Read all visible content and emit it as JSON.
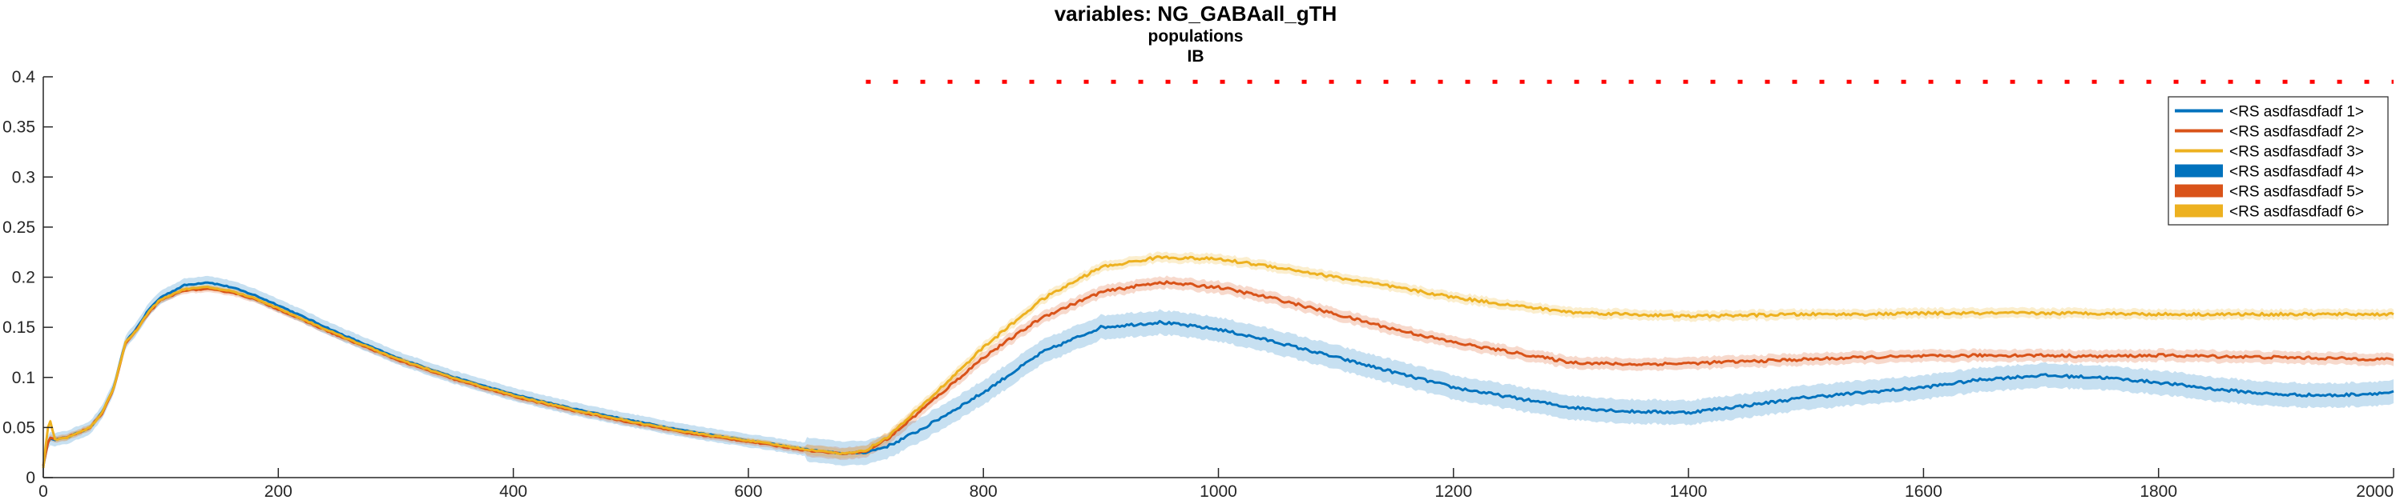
{
  "chart_data": {
    "type": "line",
    "title": "variables: NG_GABAall_gTH",
    "subtitle_lines": [
      "populations",
      "IB"
    ],
    "xlabel": "",
    "ylabel": "",
    "xlim": [
      0,
      2000
    ],
    "ylim": [
      0,
      0.4
    ],
    "x_ticks": [
      "0",
      "200",
      "400",
      "600",
      "800",
      "1000",
      "1200",
      "1400",
      "1600",
      "1800",
      "2000"
    ],
    "y_ticks": [
      "0",
      "0.05",
      "0.1",
      "0.15",
      "0.2",
      "0.25",
      "0.3",
      "0.35",
      "0.4"
    ],
    "grid": false,
    "legend_position": "top-right",
    "significance_marker": {
      "color": "#ff0000",
      "y": 0.395,
      "x_range": [
        700,
        2000
      ]
    },
    "x": [
      0,
      5,
      10,
      20,
      30,
      40,
      50,
      60,
      70,
      80,
      90,
      100,
      120,
      140,
      160,
      180,
      200,
      250,
      300,
      350,
      400,
      450,
      500,
      550,
      600,
      650,
      680,
      700,
      720,
      750,
      800,
      850,
      900,
      950,
      1000,
      1050,
      1100,
      1150,
      1200,
      1250,
      1300,
      1350,
      1400,
      1450,
      1500,
      1550,
      1600,
      1650,
      1700,
      1750,
      1800,
      1850,
      1900,
      1950,
      2000
    ],
    "series": [
      {
        "name": "<RS asdfasdfadf 1>",
        "color": "#0072BD",
        "band": 0.012,
        "values": [
          0.012,
          0.04,
          0.038,
          0.04,
          0.045,
          0.05,
          0.065,
          0.09,
          0.135,
          0.15,
          0.168,
          0.18,
          0.192,
          0.195,
          0.19,
          0.182,
          0.172,
          0.145,
          0.12,
          0.1,
          0.083,
          0.069,
          0.057,
          0.046,
          0.037,
          0.028,
          0.024,
          0.025,
          0.032,
          0.05,
          0.085,
          0.125,
          0.15,
          0.155,
          0.148,
          0.135,
          0.12,
          0.105,
          0.09,
          0.08,
          0.07,
          0.066,
          0.065,
          0.072,
          0.08,
          0.085,
          0.09,
          0.098,
          0.102,
          0.1,
          0.095,
          0.088,
          0.083,
          0.082,
          0.085
        ]
      },
      {
        "name": "<RS asdfasdfadf 2>",
        "color": "#D95319",
        "band": 0.006,
        "values": [
          0.012,
          0.04,
          0.038,
          0.04,
          0.045,
          0.05,
          0.064,
          0.089,
          0.134,
          0.148,
          0.165,
          0.177,
          0.187,
          0.188,
          0.185,
          0.178,
          0.168,
          0.142,
          0.118,
          0.098,
          0.081,
          0.067,
          0.055,
          0.044,
          0.036,
          0.027,
          0.024,
          0.026,
          0.04,
          0.07,
          0.12,
          0.16,
          0.185,
          0.195,
          0.19,
          0.178,
          0.163,
          0.148,
          0.135,
          0.125,
          0.115,
          0.113,
          0.114,
          0.116,
          0.118,
          0.12,
          0.121,
          0.122,
          0.122,
          0.121,
          0.122,
          0.121,
          0.12,
          0.119,
          0.118
        ]
      },
      {
        "name": "<RS asdfasdfadf 3>",
        "color": "#EDB120",
        "band": 0.005,
        "values": [
          0.01,
          0.06,
          0.038,
          0.04,
          0.045,
          0.05,
          0.065,
          0.09,
          0.135,
          0.148,
          0.166,
          0.178,
          0.188,
          0.19,
          0.186,
          0.179,
          0.169,
          0.143,
          0.119,
          0.099,
          0.082,
          0.068,
          0.056,
          0.045,
          0.037,
          0.028,
          0.024,
          0.027,
          0.042,
          0.074,
          0.13,
          0.178,
          0.21,
          0.22,
          0.218,
          0.21,
          0.2,
          0.19,
          0.18,
          0.172,
          0.165,
          0.163,
          0.161,
          0.162,
          0.163,
          0.163,
          0.164,
          0.164,
          0.164,
          0.164,
          0.163,
          0.163,
          0.163,
          0.163,
          0.163
        ]
      }
    ],
    "legend": [
      {
        "label": "<RS asdfasdfadf 1>",
        "style": "line",
        "color": "#0072BD"
      },
      {
        "label": "<RS asdfasdfadf 2>",
        "style": "line",
        "color": "#D95319"
      },
      {
        "label": "<RS asdfasdfadf 3>",
        "style": "line",
        "color": "#EDB120"
      },
      {
        "label": "<RS asdfasdfadf 4>",
        "style": "patch",
        "color": "#0072BD"
      },
      {
        "label": "<RS asdfasdfadf 5>",
        "style": "patch",
        "color": "#D95319"
      },
      {
        "label": "<RS asdfasdfadf 6>",
        "style": "patch",
        "color": "#EDB120"
      }
    ]
  }
}
